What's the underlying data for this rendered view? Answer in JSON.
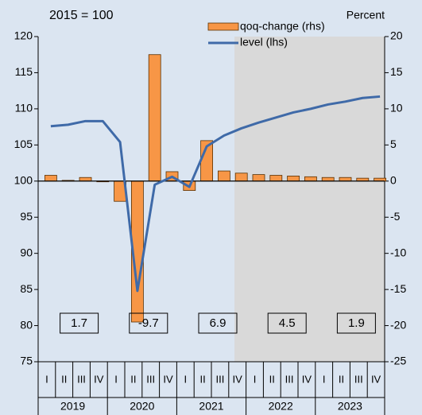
{
  "chart_data": {
    "type": "bar-line",
    "title": "2015 = 100",
    "y2_label": "Percent",
    "categories": [
      "I",
      "II",
      "III",
      "IV",
      "I",
      "II",
      "III",
      "IV",
      "I",
      "II",
      "III",
      "IV",
      "I",
      "II",
      "III",
      "IV",
      "I",
      "II",
      "III",
      "IV"
    ],
    "years": [
      "2019",
      "2020",
      "2021",
      "2022",
      "2023"
    ],
    "annual_values": [
      1.7,
      -9.7,
      6.9,
      4.5,
      1.9
    ],
    "series": [
      {
        "name": "qoq-change (rhs)",
        "type": "bar",
        "axis": "y2",
        "color": "#f79646",
        "values": [
          0.8,
          0.1,
          0.5,
          -0.1,
          -2.8,
          -19.5,
          17.5,
          1.3,
          -1.3,
          5.6,
          1.4,
          1.1,
          0.9,
          0.8,
          0.7,
          0.6,
          0.5,
          0.5,
          0.4,
          0.4
        ]
      },
      {
        "name": "level (lhs)",
        "type": "line",
        "axis": "y",
        "color": "#3f6aa8",
        "values": [
          107.6,
          107.8,
          108.3,
          108.3,
          105.4,
          84.8,
          99.5,
          100.6,
          99.2,
          104.8,
          106.3,
          107.3,
          108.1,
          108.8,
          109.5,
          110.0,
          110.6,
          111.0,
          111.5,
          111.7
        ]
      }
    ],
    "ylim": [
      75,
      120
    ],
    "yticks": [
      75,
      80,
      85,
      90,
      95,
      100,
      105,
      110,
      115,
      120
    ],
    "y2lim": [
      -25,
      20
    ],
    "y2ticks": [
      -25,
      -20,
      -15,
      -10,
      -5,
      0,
      5,
      10,
      15,
      20
    ],
    "grid": false
  }
}
